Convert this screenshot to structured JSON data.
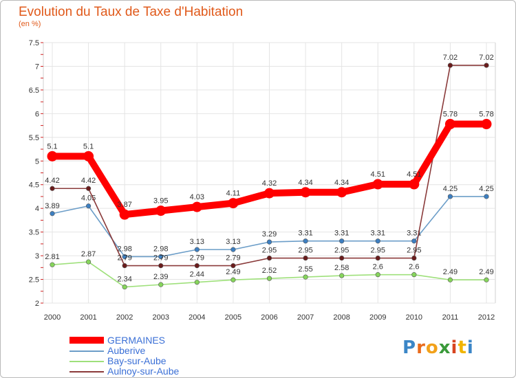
{
  "header": {
    "title": "Evolution du Taux de Taxe d'Habitation",
    "subtitle": "(en %)"
  },
  "chart_data": {
    "type": "line",
    "x": [
      "2000",
      "2001",
      "2002",
      "2003",
      "2004",
      "2005",
      "2006",
      "2007",
      "2008",
      "2009",
      "2010",
      "2011",
      "2012"
    ],
    "ylim": [
      2,
      7.5
    ],
    "yticks": [
      "2",
      "2.5",
      "3",
      "3.5",
      "4",
      "4.5",
      "5",
      "5.5",
      "6",
      "6.5",
      "7",
      "7.5"
    ],
    "grid": true,
    "legend_position": "bottom-left",
    "series": [
      {
        "name": "GERMAINES",
        "color": "#ff0000",
        "marker": "#ff0000",
        "values": [
          5.1,
          5.1,
          3.87,
          3.95,
          4.03,
          4.11,
          4.32,
          4.34,
          4.34,
          4.51,
          4.51,
          5.78,
          5.78
        ],
        "labels": [
          "5.1",
          "5.1",
          "3.87",
          "3.95",
          "4.03",
          "4.11",
          "4.32",
          "4.34",
          "4.34",
          "4.51",
          "4.51",
          "5.78",
          "5.78"
        ]
      },
      {
        "name": "Auberive",
        "color": "#6b9dc8",
        "marker": "#3d7fc1",
        "values": [
          3.89,
          4.05,
          2.98,
          2.98,
          3.13,
          3.13,
          3.29,
          3.31,
          3.31,
          3.31,
          3.31,
          4.25,
          4.25
        ],
        "labels": [
          "3.89",
          "4.05",
          "2.98",
          "2.98",
          "3.13",
          "3.13",
          "3.29",
          "3.31",
          "3.31",
          "3.31",
          "3.31",
          "4.25",
          "4.25"
        ]
      },
      {
        "name": "Bay-sur-Aube",
        "color": "#9ee07a",
        "marker": "#86d55b",
        "values": [
          2.81,
          2.87,
          2.34,
          2.39,
          2.44,
          2.49,
          2.52,
          2.55,
          2.58,
          2.6,
          2.6,
          2.49,
          2.49
        ],
        "labels": [
          "2.81",
          "2.87",
          "2.34",
          "2.39",
          "2.44",
          "2.49",
          "2.52",
          "2.55",
          "2.58",
          "2.6",
          "2.6",
          "2.49",
          "2.49"
        ]
      },
      {
        "name": "Aulnoy-sur-Aube",
        "color": "#8a3a3a",
        "marker": "#6a1c1c",
        "values": [
          4.42,
          4.42,
          2.79,
          2.79,
          2.79,
          2.79,
          2.95,
          2.95,
          2.95,
          2.95,
          2.95,
          7.02,
          7.02
        ],
        "labels": [
          "4.42",
          "4.42",
          "2.79",
          "2.79",
          "2.79",
          "2.79",
          "2.95",
          "2.95",
          "2.95",
          "2.95",
          "2.95",
          "7.02",
          "7.02"
        ]
      }
    ]
  },
  "legend": {
    "items": [
      "GERMAINES",
      "Auberive",
      "Bay-sur-Aube",
      "Aulnoy-sur-Aube"
    ]
  },
  "logo": {
    "letters": [
      "P",
      "r",
      "o",
      "x",
      "i",
      "t",
      "i"
    ],
    "colors": [
      "#3b86c7",
      "#e96b1c",
      "#f2a11a",
      "#3a9a3a",
      "#d84420",
      "#f0b400",
      "#3b86c7"
    ]
  }
}
